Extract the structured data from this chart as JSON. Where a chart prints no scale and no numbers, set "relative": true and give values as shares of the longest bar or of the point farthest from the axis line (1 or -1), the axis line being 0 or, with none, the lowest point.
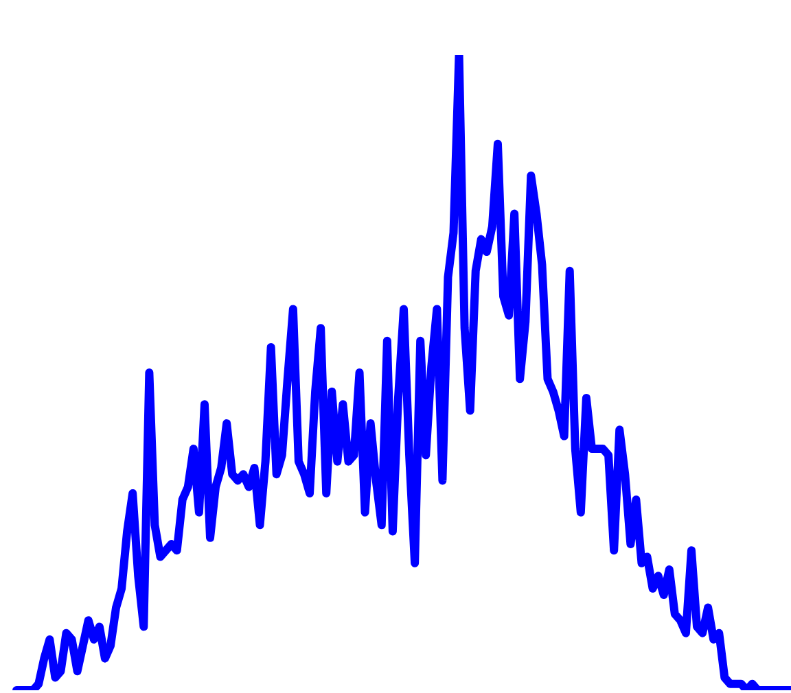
{
  "chart_data": {
    "type": "line",
    "relative": true,
    "color": "#0000ff",
    "categories": [
      null,
      null,
      null,
      null,
      null,
      null,
      null,
      null,
      null,
      null,
      null,
      null,
      null,
      null,
      null,
      null,
      null,
      null,
      null,
      null,
      null,
      null,
      null,
      null,
      null,
      null,
      null,
      null,
      null,
      null,
      null,
      null,
      null,
      null,
      null,
      null,
      null,
      null,
      null,
      null,
      null,
      null,
      null,
      null,
      null,
      null,
      null,
      null,
      null,
      null,
      null,
      null,
      null,
      null,
      null,
      null,
      null,
      null,
      null,
      null,
      null,
      null,
      null,
      null,
      null,
      null,
      null,
      null,
      null,
      null,
      null,
      null,
      null,
      null,
      null,
      null,
      null,
      null,
      null,
      null,
      null,
      null,
      null,
      null,
      null,
      null,
      null,
      null,
      null,
      null,
      null,
      null,
      null,
      null,
      null,
      null,
      null,
      null,
      null,
      null,
      null,
      null,
      null,
      null,
      null,
      null,
      null,
      null,
      null,
      null,
      null,
      null,
      null,
      null,
      null,
      null,
      null,
      null,
      null,
      null,
      null,
      null,
      null,
      null,
      null,
      null,
      null,
      null,
      null,
      null,
      null,
      null,
      null,
      null,
      null,
      null,
      null,
      null,
      null,
      null,
      null
    ],
    "values": [
      0,
      0,
      0,
      0,
      0.01,
      0.05,
      0.08,
      0.02,
      0.03,
      0.09,
      0.08,
      0.03,
      0.07,
      0.11,
      0.08,
      0.1,
      0.05,
      0.07,
      0.13,
      0.16,
      0.25,
      0.31,
      0.18,
      0.1,
      0.5,
      0.26,
      0.21,
      0.22,
      0.23,
      0.22,
      0.3,
      0.32,
      0.38,
      0.28,
      0.45,
      0.24,
      0.32,
      0.35,
      0.42,
      0.34,
      0.33,
      0.34,
      0.32,
      0.35,
      0.26,
      0.36,
      0.54,
      0.34,
      0.37,
      0.49,
      0.6,
      0.36,
      0.34,
      0.31,
      0.47,
      0.57,
      0.31,
      0.47,
      0.36,
      0.45,
      0.36,
      0.37,
      0.5,
      0.28,
      0.42,
      0.33,
      0.26,
      0.55,
      0.25,
      0.46,
      0.6,
      0.37,
      0.2,
      0.55,
      0.37,
      0.51,
      0.6,
      0.33,
      0.65,
      0.72,
      1,
      0.57,
      0.44,
      0.66,
      0.71,
      0.69,
      0.73,
      0.86,
      0.62,
      0.59,
      0.75,
      0.49,
      0.58,
      0.81,
      0.75,
      0.67,
      0.49,
      0.47,
      0.44,
      0.4,
      0.66,
      0.38,
      0.28,
      0.46,
      0.38,
      0.38,
      0.38,
      0.37,
      0.22,
      0.41,
      0.34,
      0.23,
      0.3,
      0.2,
      0.21,
      0.16,
      0.18,
      0.15,
      0.19,
      0.12,
      0.11,
      0.09,
      0.22,
      0.1,
      0.09,
      0.13,
      0.08,
      0.09,
      0.02,
      0.01,
      0.01,
      0.01,
      0,
      0.01,
      0,
      0,
      0,
      0,
      0,
      0,
      0
    ]
  }
}
